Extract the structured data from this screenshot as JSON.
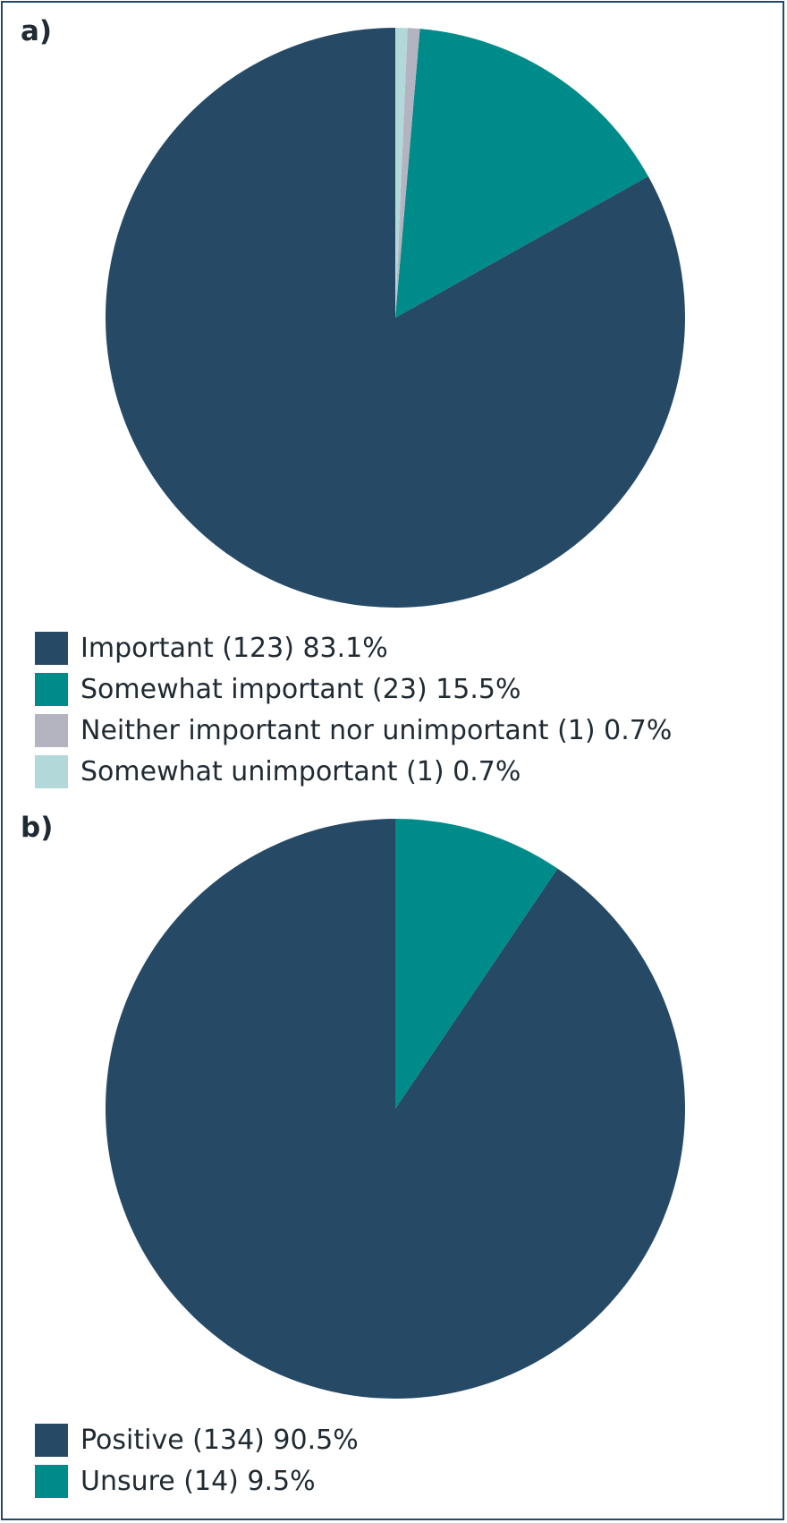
{
  "chart_data": [
    {
      "type": "pie",
      "panel_label": "a)",
      "slices": [
        {
          "label": "Important (123) 83.1%",
          "name": "Important",
          "count": 123,
          "percent": 83.1,
          "color": "#264a66"
        },
        {
          "label": "Somewhat important (23) 15.5%",
          "name": "Somewhat important",
          "count": 23,
          "percent": 15.5,
          "color": "#008b8b"
        },
        {
          "label": "Neither important nor unimportant (1) 0.7%",
          "name": "Neither important nor unimportant",
          "count": 1,
          "percent": 0.7,
          "color": "#b4b4c0"
        },
        {
          "label": "Somewhat unimportant (1) 0.7%",
          "name": "Somewhat unimportant",
          "count": 1,
          "percent": 0.7,
          "color": "#b2d8da"
        }
      ],
      "legend_position": "bottom-left"
    },
    {
      "type": "pie",
      "panel_label": "b)",
      "slices": [
        {
          "label": "Positive (134) 90.5%",
          "name": "Positive",
          "count": 134,
          "percent": 90.5,
          "color": "#264a66"
        },
        {
          "label": "Unsure (14) 9.5%",
          "name": "Unsure",
          "count": 14,
          "percent": 9.5,
          "color": "#008b8b"
        }
      ],
      "legend_position": "bottom-left"
    }
  ]
}
